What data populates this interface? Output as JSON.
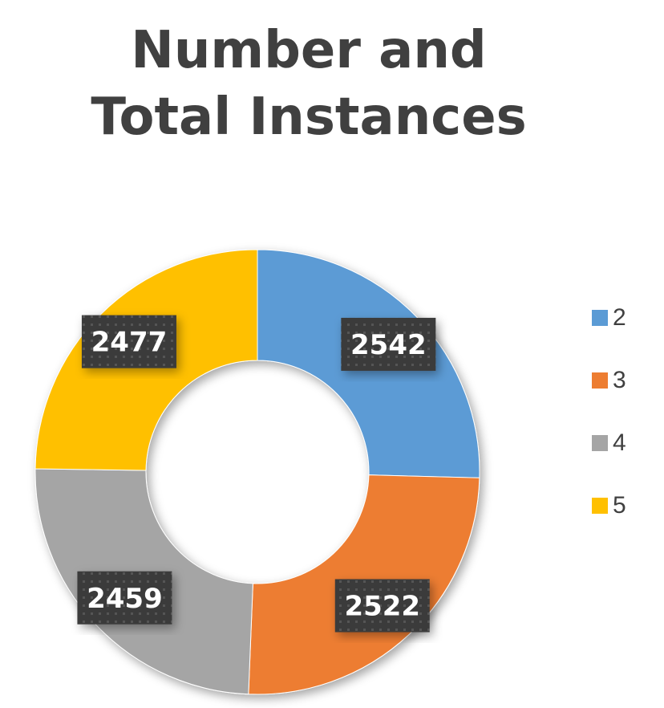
{
  "chart_data": {
    "type": "pie",
    "subtype": "doughnut",
    "title_lines": [
      "Number and",
      "Total Instances"
    ],
    "categories": [
      "2",
      "3",
      "4",
      "5"
    ],
    "values": [
      2542,
      2522,
      2459,
      2477
    ],
    "labels": [
      "2542",
      "2522",
      "2459",
      "2477"
    ],
    "colors": [
      "#5B9BD5",
      "#ED7D31",
      "#A5A5A5",
      "#FFC000"
    ],
    "legend_position": "right",
    "start_angle": "top",
    "direction": "clockwise"
  }
}
